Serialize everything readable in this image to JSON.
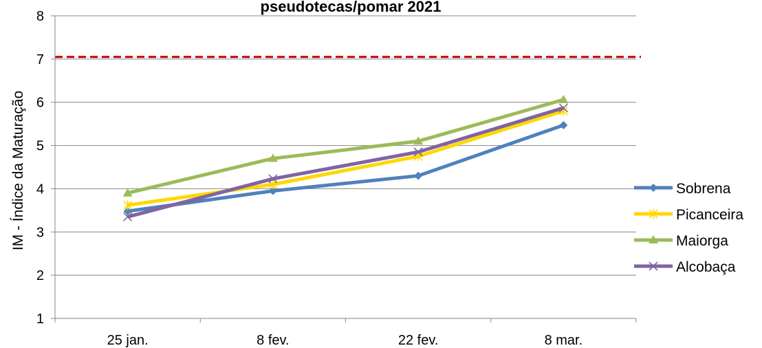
{
  "chart_data": {
    "type": "line",
    "title": "pseudotecas/pomar 2021",
    "xlabel": "",
    "ylabel": "IM - Índice da Maturação",
    "categories": [
      "25 jan.",
      "8 fev.",
      "22 fev.",
      "8 mar."
    ],
    "ylim": [
      1,
      8
    ],
    "yticks": [
      1,
      2,
      3,
      4,
      5,
      6,
      7,
      8
    ],
    "grid": "horizontal",
    "legend_position": "right",
    "reference_line": {
      "value": 7.05,
      "color": "#C00000",
      "style": "dashed"
    },
    "series": [
      {
        "name": "Sobrena",
        "color": "#4F81BD",
        "marker": "diamond",
        "values": [
          3.48,
          3.95,
          4.3,
          5.47
        ]
      },
      {
        "name": "Picanceira",
        "color": "#FFD700",
        "marker": "asterisk",
        "values": [
          3.62,
          4.1,
          4.75,
          5.8
        ]
      },
      {
        "name": "Maiorga",
        "color": "#9BBB59",
        "marker": "triangle",
        "values": [
          3.9,
          4.7,
          5.1,
          6.06
        ]
      },
      {
        "name": "Alcobaça",
        "color": "#8064A2",
        "marker": "x",
        "values": [
          3.35,
          4.23,
          4.85,
          5.87
        ]
      }
    ]
  }
}
